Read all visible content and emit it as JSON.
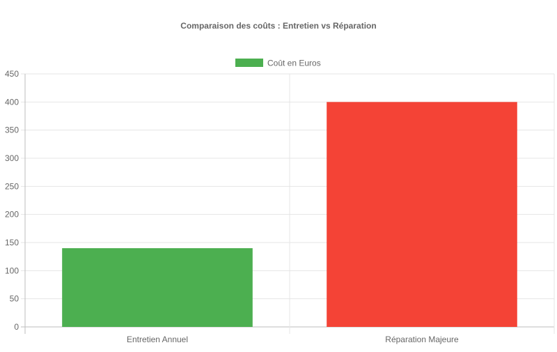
{
  "chart_data": {
    "type": "bar",
    "title": "Comparaison des coûts : Entretien vs Réparation",
    "categories": [
      "Entretien Annuel",
      "Réparation Majeure"
    ],
    "series": [
      {
        "name": "Coût en Euros",
        "values": [
          140,
          400
        ],
        "colors": [
          "#4caf50",
          "#f44336"
        ]
      }
    ],
    "ylim": [
      0,
      450
    ],
    "yticks": [
      0,
      50,
      100,
      150,
      200,
      250,
      300,
      350,
      400,
      450
    ],
    "grid": true,
    "legend_position": "top"
  }
}
